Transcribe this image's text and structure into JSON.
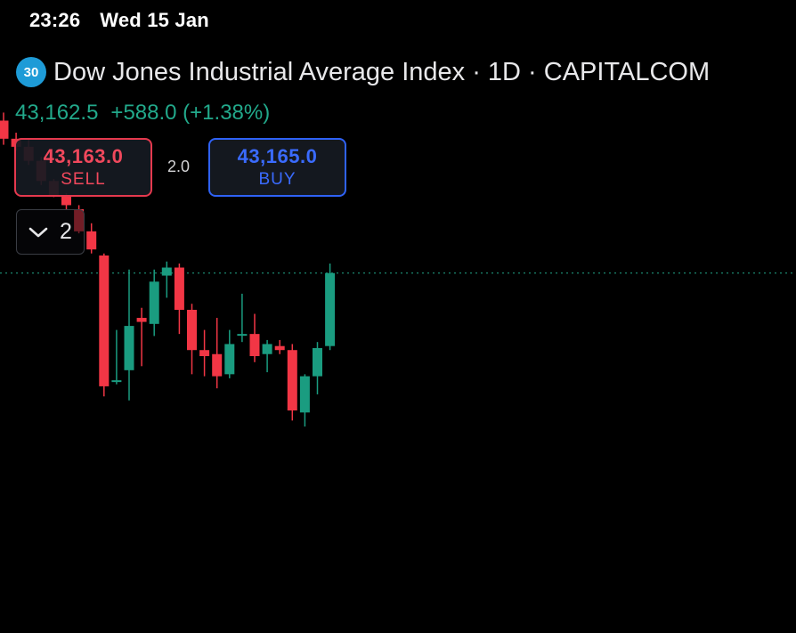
{
  "status_bar": {
    "time": "23:26",
    "date": "Wed 15 Jan"
  },
  "header": {
    "badge_text": "30",
    "title": "Dow Jones Industrial Average Index · 1D · CAPITALCOM",
    "last_price": "43,162.5",
    "change": "+588.0 (+1.38%)"
  },
  "trade": {
    "sell_price": "43,163.0",
    "sell_label": "SELL",
    "spread": "2.0",
    "buy_price": "43,165.0",
    "buy_label": "BUY"
  },
  "indicators": {
    "collapsed_count": "2"
  },
  "colors": {
    "up": "#1a9c80",
    "down": "#f23645",
    "accent_blue": "#2f62f5",
    "price_line": "#22a98b"
  },
  "chart_data": {
    "type": "candlestick",
    "title": "Dow Jones Industrial Average Index · 1D · CAPITALCOM",
    "ylim": [
      41600,
      43900
    ],
    "current_price": 43162.5,
    "candles": [
      {
        "open": 43920,
        "high": 43960,
        "low": 43800,
        "close": 43830
      },
      {
        "open": 43830,
        "high": 43860,
        "low": 43770,
        "close": 43790
      },
      {
        "open": 43790,
        "high": 43830,
        "low": 43700,
        "close": 43720
      },
      {
        "open": 43720,
        "high": 43740,
        "low": 43600,
        "close": 43620
      },
      {
        "open": 43620,
        "high": 43630,
        "low": 43540,
        "close": 43550
      },
      {
        "open": 43550,
        "high": 43560,
        "low": 43480,
        "close": 43500
      },
      {
        "open": 43480,
        "high": 43500,
        "low": 43360,
        "close": 43370
      },
      {
        "open": 43370,
        "high": 43410,
        "low": 43260,
        "close": 43280
      },
      {
        "open": 43250,
        "high": 43260,
        "low": 42550,
        "close": 42600
      },
      {
        "open": 42630,
        "high": 42880,
        "low": 42610,
        "close": 42630
      },
      {
        "open": 42680,
        "high": 43180,
        "low": 42530,
        "close": 42900
      },
      {
        "open": 42940,
        "high": 42990,
        "low": 42700,
        "close": 42920
      },
      {
        "open": 42910,
        "high": 43180,
        "low": 42850,
        "close": 43120
      },
      {
        "open": 43150,
        "high": 43220,
        "low": 43040,
        "close": 43190
      },
      {
        "open": 43190,
        "high": 43210,
        "low": 42860,
        "close": 42980
      },
      {
        "open": 42980,
        "high": 43010,
        "low": 42660,
        "close": 42780
      },
      {
        "open": 42780,
        "high": 42880,
        "low": 42650,
        "close": 42750
      },
      {
        "open": 42760,
        "high": 42940,
        "low": 42590,
        "close": 42650
      },
      {
        "open": 42660,
        "high": 42880,
        "low": 42640,
        "close": 42810
      },
      {
        "open": 42860,
        "high": 43060,
        "low": 42820,
        "close": 42860
      },
      {
        "open": 42860,
        "high": 42960,
        "low": 42720,
        "close": 42750
      },
      {
        "open": 42760,
        "high": 42830,
        "low": 42670,
        "close": 42810
      },
      {
        "open": 42800,
        "high": 42830,
        "low": 42760,
        "close": 42780
      },
      {
        "open": 42780,
        "high": 42810,
        "low": 42430,
        "close": 42480
      },
      {
        "open": 42470,
        "high": 42660,
        "low": 42400,
        "close": 42650
      },
      {
        "open": 42650,
        "high": 42820,
        "low": 42560,
        "close": 42790
      },
      {
        "open": 42800,
        "high": 43210,
        "low": 42780,
        "close": 43162.5
      }
    ]
  }
}
